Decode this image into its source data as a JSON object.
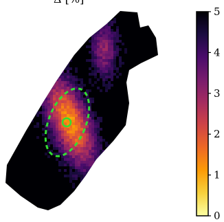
{
  "chart_data": {
    "type": "heatmap",
    "title": "Δ [%]",
    "colormap": "inferno_r",
    "colorbar": {
      "ticks": [
        "0",
        "1",
        "2",
        "3",
        "4",
        "5"
      ],
      "vmin": 0,
      "vmax": 5,
      "stops": [
        "#fcffa4",
        "#f7d13d",
        "#fb9b06",
        "#ed6925",
        "#cf4446",
        "#a52c60",
        "#781c6d",
        "#4a0c6b",
        "#1b0c41",
        "#000004"
      ]
    },
    "map": {
      "outline": [
        [
          175,
          16
        ],
        [
          200,
          18
        ],
        [
          204,
          40
        ],
        [
          216,
          37
        ],
        [
          227,
          55
        ],
        [
          230,
          80
        ],
        [
          205,
          92
        ],
        [
          188,
          102
        ],
        [
          184,
          120
        ],
        [
          188,
          150
        ],
        [
          183,
          182
        ],
        [
          165,
          205
        ],
        [
          140,
          232
        ],
        [
          125,
          255
        ],
        [
          108,
          278
        ],
        [
          88,
          298
        ],
        [
          70,
          306
        ],
        [
          55,
          302
        ],
        [
          30,
          285
        ],
        [
          8,
          266
        ],
        [
          10,
          240
        ],
        [
          38,
          190
        ],
        [
          62,
          150
        ],
        [
          82,
          118
        ],
        [
          108,
          80
        ],
        [
          130,
          55
        ],
        [
          155,
          35
        ]
      ],
      "peak_value": 1.2,
      "background_value": 5,
      "marker_color": "#33dd33"
    }
  }
}
